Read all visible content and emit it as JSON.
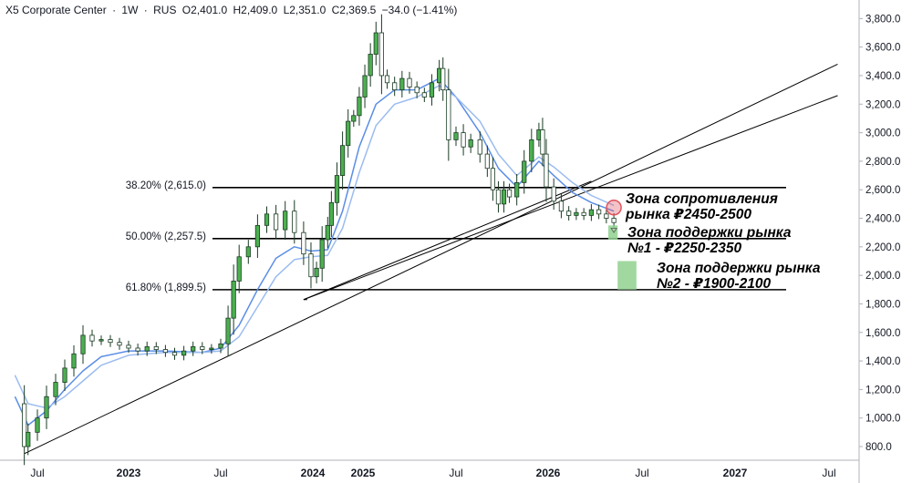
{
  "header": {
    "symbol": "X5 Corporate Center",
    "interval": "1W",
    "exchange": "RUS",
    "open": "O2,401.0",
    "high": "H2,409.0",
    "low": "L2,351.0",
    "close": "C2,369.5",
    "change": "−34.0 (−1.41%)"
  },
  "chart_data": {
    "type": "candlestick",
    "price_axis": {
      "min": 700,
      "max": 3900,
      "side": "right",
      "ticks": [
        800,
        1000,
        1200,
        1400,
        1600,
        1800,
        2000,
        2200,
        2400,
        2600,
        2800,
        3000,
        3200,
        3400,
        3600,
        3800
      ],
      "tick_labels": [
        "800.0",
        "1,000.0",
        "1,200.0",
        "1,400.0",
        "1,600.0",
        "1,800.0",
        "2,000.0",
        "2,200.0",
        "2,400.0",
        "2,600.0",
        "2,800.0",
        "3,000.0",
        "3,200.0",
        "3,400.0",
        "3,600.0",
        "3,800.0"
      ]
    },
    "time_axis": {
      "labels": [
        {
          "t": 2022.5,
          "text": "Jul",
          "bold": false
        },
        {
          "t": 2023.0,
          "text": "2023",
          "bold": true
        },
        {
          "t": 2023.5,
          "text": "Jul",
          "bold": false
        },
        {
          "t": 2024.0,
          "text": "2024",
          "bold": true
        },
        {
          "t": 2024.27,
          "text": "2025",
          "bold": true
        },
        {
          "t": 2024.77,
          "text": "Jul",
          "bold": false
        },
        {
          "t": 2025.27,
          "text": "2026",
          "bold": true
        },
        {
          "t": 2025.77,
          "text": "Jul",
          "bold": false
        },
        {
          "t": 2026.27,
          "text": "2027",
          "bold": true
        },
        {
          "t": 2026.77,
          "text": "Jul",
          "bold": false
        }
      ]
    },
    "closes": [
      [
        2022.38,
        1100
      ],
      [
        2022.43,
        800
      ],
      [
        2022.45,
        900
      ],
      [
        2022.5,
        1000
      ],
      [
        2022.55,
        1150
      ],
      [
        2022.6,
        1250
      ],
      [
        2022.65,
        1350
      ],
      [
        2022.7,
        1450
      ],
      [
        2022.75,
        1580
      ],
      [
        2022.8,
        1540
      ],
      [
        2022.85,
        1550
      ],
      [
        2022.9,
        1530
      ],
      [
        2022.95,
        1510
      ],
      [
        2023.0,
        1490
      ],
      [
        2023.05,
        1470
      ],
      [
        2023.1,
        1500
      ],
      [
        2023.15,
        1480
      ],
      [
        2023.2,
        1460
      ],
      [
        2023.25,
        1440
      ],
      [
        2023.3,
        1470
      ],
      [
        2023.35,
        1500
      ],
      [
        2023.4,
        1480
      ],
      [
        2023.45,
        1490
      ],
      [
        2023.5,
        1520
      ],
      [
        2023.54,
        1700
      ],
      [
        2023.57,
        1960
      ],
      [
        2023.6,
        2130
      ],
      [
        2023.65,
        2200
      ],
      [
        2023.7,
        2350
      ],
      [
        2023.75,
        2430
      ],
      [
        2023.8,
        2320
      ],
      [
        2023.85,
        2450
      ],
      [
        2023.9,
        2300
      ],
      [
        2023.95,
        2150
      ],
      [
        2023.99,
        1990
      ],
      [
        2024.02,
        2050
      ],
      [
        2024.05,
        2250
      ],
      [
        2024.08,
        2350
      ],
      [
        2024.1,
        2510
      ],
      [
        2024.13,
        2700
      ],
      [
        2024.16,
        2910
      ],
      [
        2024.19,
        3080
      ],
      [
        2024.22,
        3120
      ],
      [
        2024.25,
        3250
      ],
      [
        2024.28,
        3400
      ],
      [
        2024.31,
        3550
      ],
      [
        2024.34,
        3700
      ],
      [
        2024.37,
        3400
      ],
      [
        2024.4,
        3350
      ],
      [
        2024.44,
        3300
      ],
      [
        2024.48,
        3380
      ],
      [
        2024.52,
        3320
      ],
      [
        2024.56,
        3280
      ],
      [
        2024.6,
        3250
      ],
      [
        2024.64,
        3350
      ],
      [
        2024.68,
        3450
      ],
      [
        2024.7,
        3300
      ],
      [
        2024.73,
        2950
      ],
      [
        2024.77,
        3000
      ],
      [
        2024.81,
        2900
      ],
      [
        2024.85,
        2950
      ],
      [
        2024.9,
        2850
      ],
      [
        2024.94,
        2750
      ],
      [
        2024.97,
        2600
      ],
      [
        2025.0,
        2500
      ],
      [
        2025.03,
        2600
      ],
      [
        2025.06,
        2550
      ],
      [
        2025.1,
        2650
      ],
      [
        2025.14,
        2800
      ],
      [
        2025.18,
        2950
      ],
      [
        2025.22,
        3020
      ],
      [
        2025.24,
        2850
      ],
      [
        2025.26,
        2620
      ],
      [
        2025.3,
        2520
      ],
      [
        2025.34,
        2450
      ],
      [
        2025.38,
        2420
      ],
      [
        2025.42,
        2440
      ],
      [
        2025.46,
        2420
      ],
      [
        2025.5,
        2460
      ],
      [
        2025.54,
        2430
      ],
      [
        2025.58,
        2400
      ],
      [
        2025.62,
        2370
      ]
    ],
    "series": [
      {
        "name": "",
        "color": "#5b8ee6",
        "values": [
          [
            2022.38,
            1150
          ],
          [
            2022.45,
            950
          ],
          [
            2022.55,
            1050
          ],
          [
            2022.65,
            1200
          ],
          [
            2022.75,
            1330
          ],
          [
            2022.85,
            1430
          ],
          [
            2023.0,
            1470
          ],
          [
            2023.2,
            1470
          ],
          [
            2023.4,
            1460
          ],
          [
            2023.5,
            1490
          ],
          [
            2023.6,
            1650
          ],
          [
            2023.7,
            1900
          ],
          [
            2023.8,
            2120
          ],
          [
            2023.9,
            2200
          ],
          [
            2023.99,
            2170
          ],
          [
            2024.08,
            2180
          ],
          [
            2024.16,
            2450
          ],
          [
            2024.25,
            2900
          ],
          [
            2024.34,
            3200
          ],
          [
            2024.44,
            3300
          ],
          [
            2024.56,
            3300
          ],
          [
            2024.68,
            3380
          ],
          [
            2024.77,
            3250
          ],
          [
            2024.9,
            3000
          ],
          [
            2025.0,
            2750
          ],
          [
            2025.1,
            2620
          ],
          [
            2025.22,
            2800
          ],
          [
            2025.3,
            2700
          ],
          [
            2025.4,
            2580
          ],
          [
            2025.5,
            2510
          ],
          [
            2025.62,
            2450
          ]
        ]
      },
      {
        "name": "",
        "color": "#9bbcf0",
        "values": [
          [
            2022.38,
            1300
          ],
          [
            2022.45,
            1100
          ],
          [
            2022.55,
            1070
          ],
          [
            2022.65,
            1150
          ],
          [
            2022.75,
            1260
          ],
          [
            2022.85,
            1370
          ],
          [
            2023.0,
            1440
          ],
          [
            2023.2,
            1460
          ],
          [
            2023.4,
            1460
          ],
          [
            2023.5,
            1470
          ],
          [
            2023.6,
            1570
          ],
          [
            2023.7,
            1780
          ],
          [
            2023.8,
            1990
          ],
          [
            2023.9,
            2110
          ],
          [
            2023.99,
            2130
          ],
          [
            2024.08,
            2140
          ],
          [
            2024.16,
            2330
          ],
          [
            2024.25,
            2720
          ],
          [
            2024.34,
            3050
          ],
          [
            2024.44,
            3200
          ],
          [
            2024.56,
            3250
          ],
          [
            2024.68,
            3330
          ],
          [
            2024.77,
            3250
          ],
          [
            2024.9,
            3080
          ],
          [
            2025.0,
            2850
          ],
          [
            2025.1,
            2700
          ],
          [
            2025.22,
            2830
          ],
          [
            2025.3,
            2760
          ],
          [
            2025.4,
            2650
          ],
          [
            2025.5,
            2560
          ],
          [
            2025.62,
            2490
          ]
        ]
      }
    ],
    "fib_levels": [
      {
        "label": "38.20% (2,615.0)",
        "price": 2615
      },
      {
        "label": "50.00% (2,257.5)",
        "price": 2257.5
      },
      {
        "label": "61.80% (1,899.5)",
        "price": 1899.5
      }
    ],
    "trendlines": [
      {
        "p1": [
          2022.43,
          750
        ],
        "p2": [
          2026.8,
          3480
        ]
      },
      {
        "p1": [
          2023.95,
          1830
        ],
        "p2": [
          2026.8,
          3260
        ]
      },
      {
        "p1": [
          2023.95,
          1830
        ],
        "p2": [
          2025.5,
          2660
        ]
      }
    ],
    "zones": [
      {
        "label": "Зона поддержки рынка №1 - ₽2250-2350",
        "t1": 2025.59,
        "t2": 2025.64,
        "p_low": 2250,
        "p_high": 2350,
        "color": "#8fd18f"
      },
      {
        "label": "Зона поддержки рынка №2 - ₽1900-2100",
        "t1": 2025.64,
        "t2": 2025.74,
        "p_low": 1900,
        "p_high": 2100,
        "color": "#8fd18f"
      }
    ],
    "resistance": {
      "label": "Зона сопротивления рынка ₽2450-2500",
      "t": 2025.62,
      "price": 2475,
      "color": "#e0525f"
    },
    "grid": false
  }
}
